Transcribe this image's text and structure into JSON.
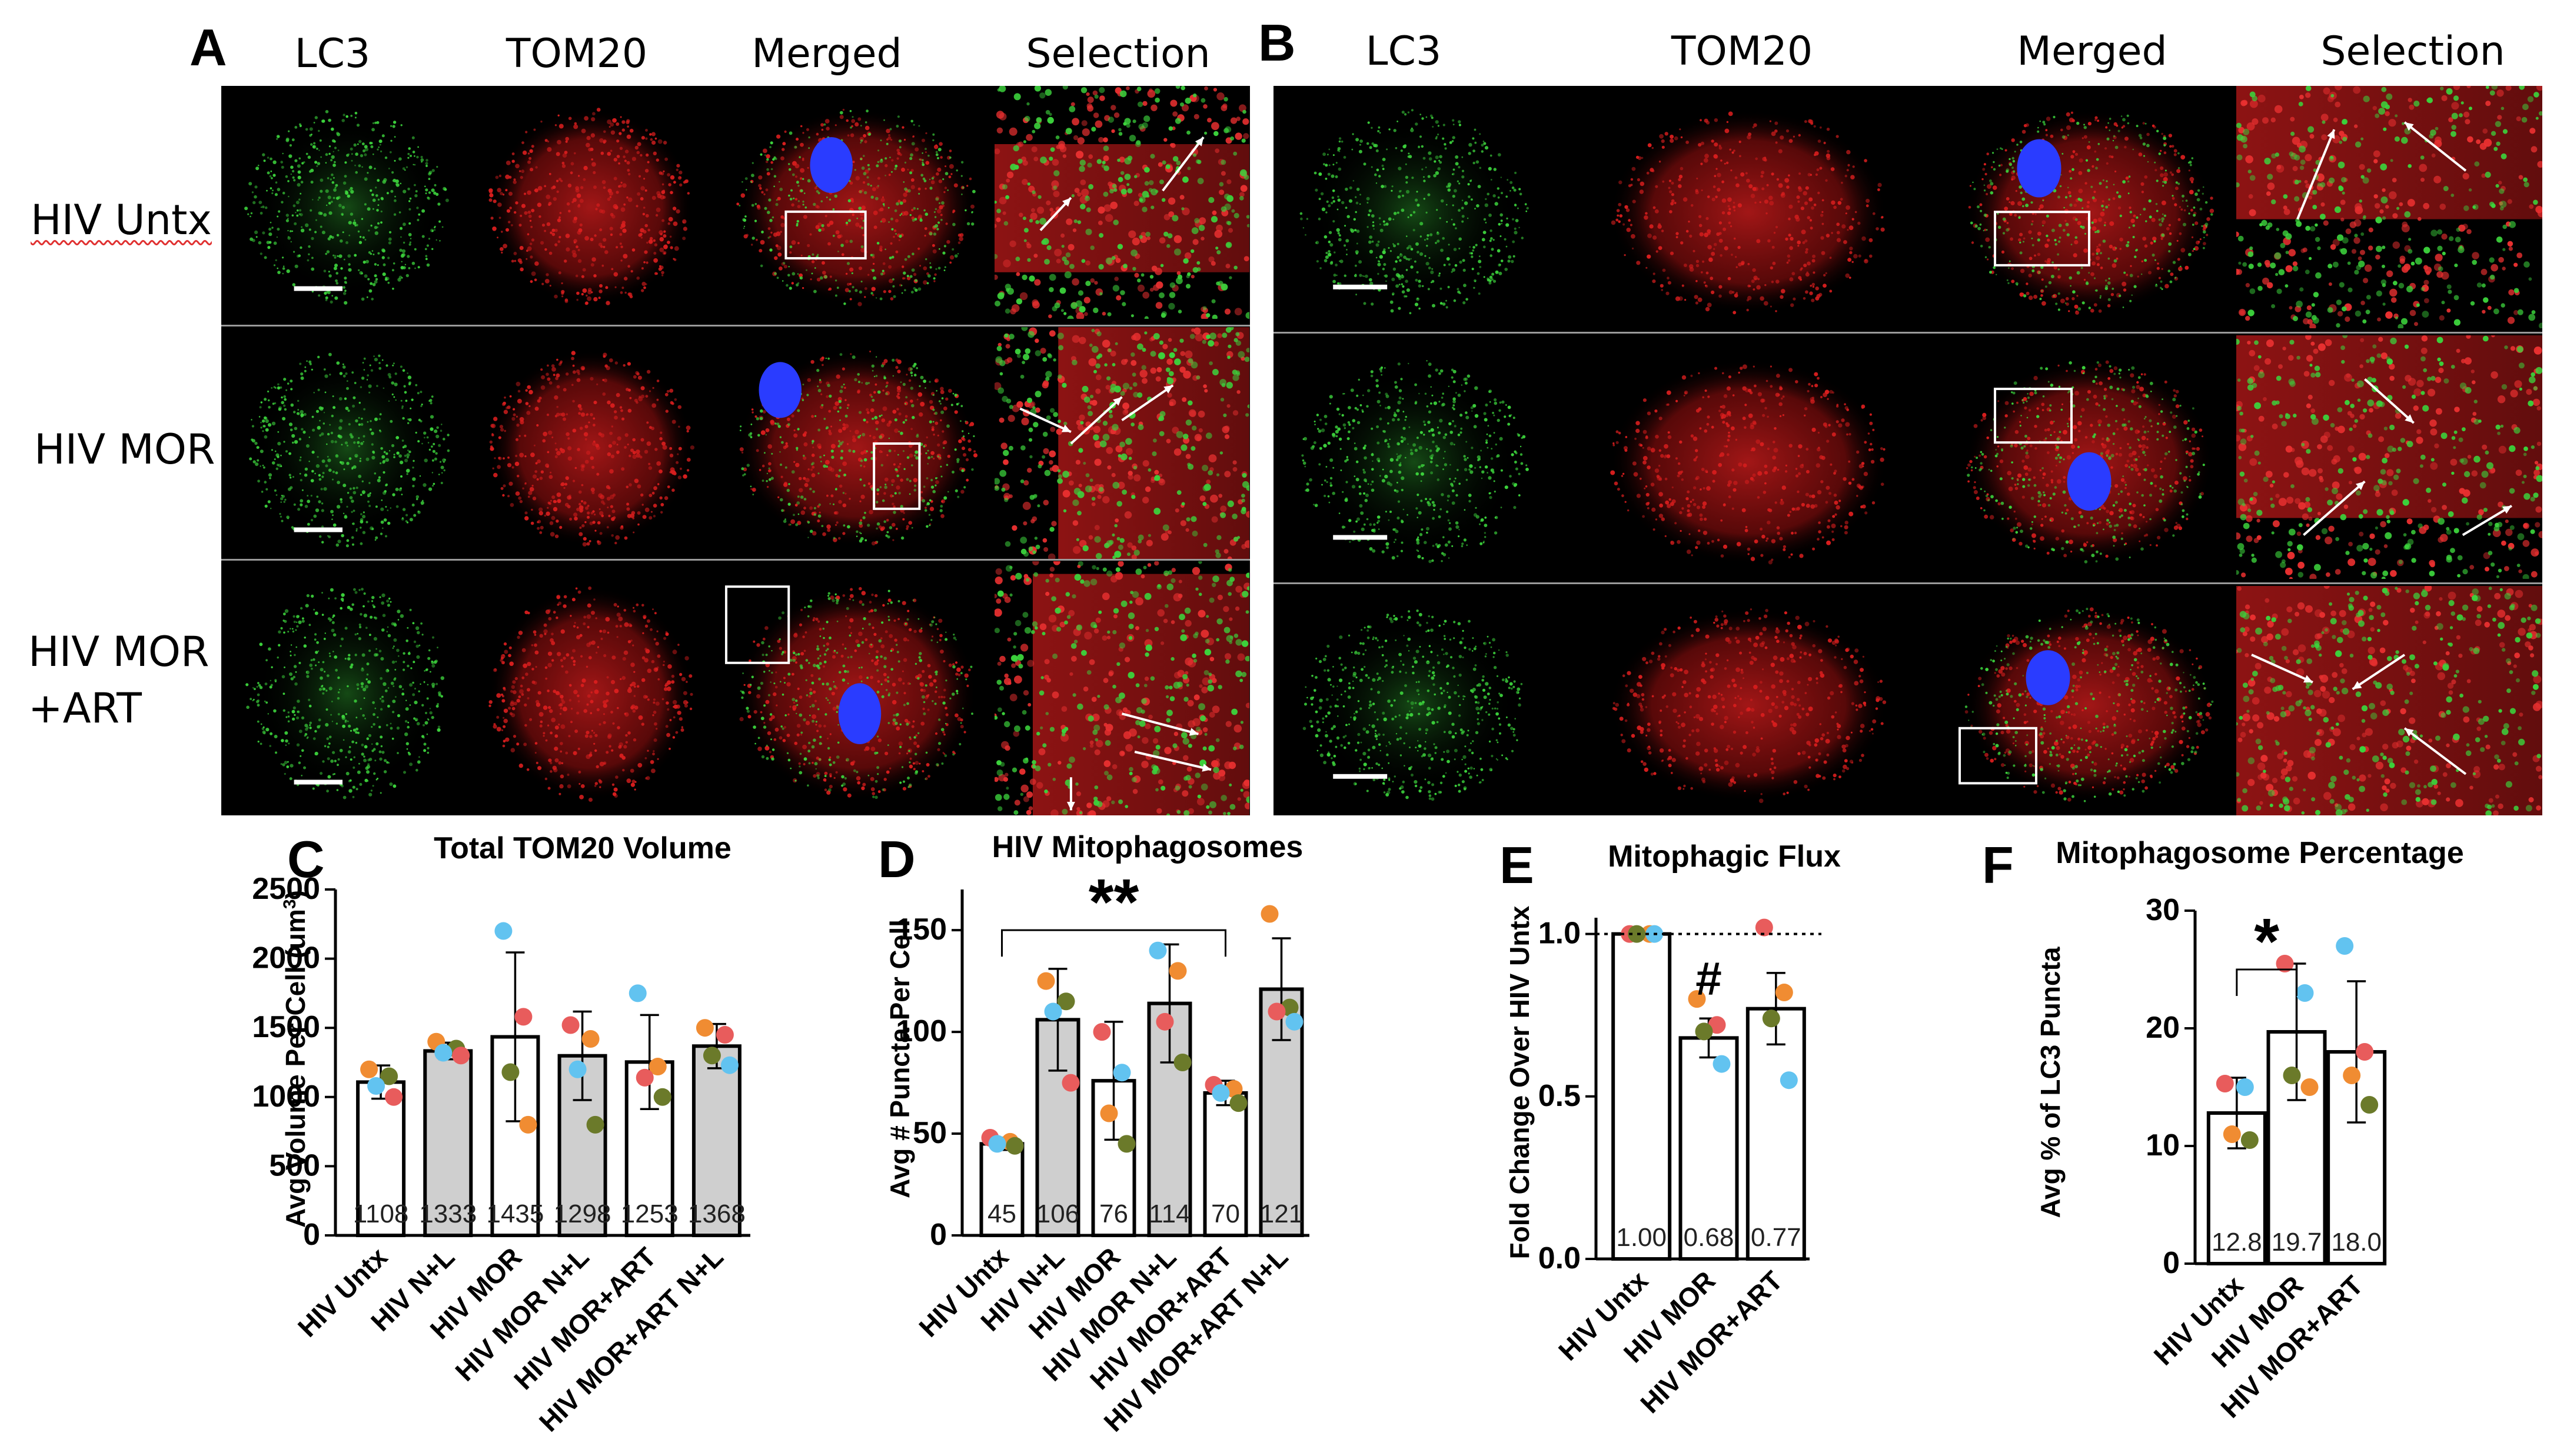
{
  "figure": {
    "panels": [
      {
        "letter": "A",
        "columns": [
          "LC3",
          "TOM20",
          "Merged",
          "Selection"
        ],
        "rows": [
          {
            "label": "HIV Untx",
            "underlined": true
          },
          {
            "label": "HIV MOR"
          },
          {
            "label": "HIV MOR",
            "label2": "+ART"
          }
        ]
      },
      {
        "letter": "B",
        "columns": [
          "LC3",
          "TOM20",
          "Merged",
          "Selection"
        ]
      }
    ],
    "colors": {
      "lc3_green": "#3cd23c",
      "tom20_red": "#d81e1e",
      "nucleus_blue": "#2a3cff",
      "bar_white": "#ffffff",
      "bar_grey": "#cfcfcf",
      "dot_blue": "#62c3f0",
      "dot_orange": "#f08c32",
      "dot_green": "#6b7a2a",
      "dot_red": "#e85c5c"
    }
  },
  "chart_data": [
    {
      "letter": "C",
      "type": "bar",
      "title": "Total TOM20 Volume",
      "ylabel": "Avg Volume Per Cell (um",
      "ylabel_sup": "3",
      "ylabel_close": ")",
      "ylim": [
        0,
        2500
      ],
      "yticks": [
        0,
        500,
        1000,
        1500,
        2000,
        2500
      ],
      "categories": [
        "HIV Untx",
        "HIV N+L",
        "HIV MOR",
        "HIV MOR N+L",
        "HIV MOR+ART",
        "HIV MOR+ART N+L"
      ],
      "values": [
        1108,
        1333,
        1435,
        1298,
        1253,
        1368
      ],
      "value_labels": [
        "1108",
        "1333",
        "1435",
        "1298",
        "1253",
        "1368"
      ],
      "errors": [
        120,
        60,
        610,
        320,
        340,
        160
      ],
      "fills": [
        "white",
        "grey",
        "white",
        "grey",
        "white",
        "grey"
      ],
      "points": [
        [
          {
            "v": 1200,
            "c": "dot_orange"
          },
          {
            "v": 1150,
            "c": "dot_green"
          },
          {
            "v": 1080,
            "c": "dot_blue"
          },
          {
            "v": 1000,
            "c": "dot_red"
          }
        ],
        [
          {
            "v": 1400,
            "c": "dot_orange"
          },
          {
            "v": 1350,
            "c": "dot_green"
          },
          {
            "v": 1320,
            "c": "dot_blue"
          },
          {
            "v": 1300,
            "c": "dot_red"
          }
        ],
        [
          {
            "v": 2200,
            "c": "dot_blue"
          },
          {
            "v": 1580,
            "c": "dot_red"
          },
          {
            "v": 1180,
            "c": "dot_green"
          },
          {
            "v": 800,
            "c": "dot_orange"
          }
        ],
        [
          {
            "v": 1520,
            "c": "dot_red"
          },
          {
            "v": 1420,
            "c": "dot_orange"
          },
          {
            "v": 1200,
            "c": "dot_blue"
          },
          {
            "v": 800,
            "c": "dot_green"
          }
        ],
        [
          {
            "v": 1750,
            "c": "dot_blue"
          },
          {
            "v": 1220,
            "c": "dot_orange"
          },
          {
            "v": 1140,
            "c": "dot_red"
          },
          {
            "v": 1000,
            "c": "dot_green"
          }
        ],
        [
          {
            "v": 1500,
            "c": "dot_orange"
          },
          {
            "v": 1450,
            "c": "dot_red"
          },
          {
            "v": 1300,
            "c": "dot_green"
          },
          {
            "v": 1230,
            "c": "dot_blue"
          }
        ]
      ]
    },
    {
      "letter": "D",
      "type": "bar",
      "title": "HIV Mitophagosomes",
      "ylabel": "Avg # Puncta Per Cell",
      "ylim": [
        0,
        170
      ],
      "yticks": [
        0,
        50,
        100,
        150
      ],
      "categories": [
        "HIV Untx",
        "HIV N+L",
        "HIV MOR",
        "HIV MOR N+L",
        "HIV MOR+ART",
        "HIV MOR+ART N+L"
      ],
      "values": [
        45,
        106,
        76,
        114,
        70,
        121
      ],
      "value_labels": [
        "45",
        "106",
        "76",
        "114",
        "70",
        "121"
      ],
      "errors": [
        3,
        25,
        29,
        29,
        6,
        25
      ],
      "fills": [
        "white",
        "grey",
        "white",
        "grey",
        "white",
        "grey"
      ],
      "points": [
        [
          {
            "v": 48,
            "c": "dot_red"
          },
          {
            "v": 46,
            "c": "dot_orange"
          },
          {
            "v": 45,
            "c": "dot_blue"
          },
          {
            "v": 44,
            "c": "dot_green"
          }
        ],
        [
          {
            "v": 125,
            "c": "dot_orange"
          },
          {
            "v": 115,
            "c": "dot_green"
          },
          {
            "v": 110,
            "c": "dot_blue"
          },
          {
            "v": 75,
            "c": "dot_red"
          }
        ],
        [
          {
            "v": 100,
            "c": "dot_red"
          },
          {
            "v": 80,
            "c": "dot_blue"
          },
          {
            "v": 60,
            "c": "dot_orange"
          },
          {
            "v": 45,
            "c": "dot_green"
          }
        ],
        [
          {
            "v": 140,
            "c": "dot_blue"
          },
          {
            "v": 130,
            "c": "dot_orange"
          },
          {
            "v": 105,
            "c": "dot_red"
          },
          {
            "v": 85,
            "c": "dot_green"
          }
        ],
        [
          {
            "v": 74,
            "c": "dot_red"
          },
          {
            "v": 72,
            "c": "dot_orange"
          },
          {
            "v": 70,
            "c": "dot_blue"
          },
          {
            "v": 65,
            "c": "dot_green"
          }
        ],
        [
          {
            "v": 158,
            "c": "dot_orange"
          },
          {
            "v": 112,
            "c": "dot_green"
          },
          {
            "v": 110,
            "c": "dot_red"
          },
          {
            "v": 105,
            "c": "dot_blue"
          }
        ]
      ],
      "significance": {
        "label": "**",
        "from": 0,
        "to": 4,
        "at": 150
      }
    },
    {
      "letter": "E",
      "type": "bar",
      "title": "Mitophagic Flux",
      "ylabel": "Fold Change Over HIV Untx",
      "ylim": [
        0,
        1.05
      ],
      "yticks": [
        0.0,
        0.5,
        1.0
      ],
      "ytick_labels": [
        "0.0",
        "0.5",
        "1.0"
      ],
      "categories": [
        "HIV Untx",
        "HIV MOR",
        "HIV MOR+ART"
      ],
      "values": [
        1.0,
        0.68,
        0.77
      ],
      "value_labels": [
        "1.00",
        "0.68",
        "0.77"
      ],
      "errors": [
        0,
        0.06,
        0.11
      ],
      "fills": [
        "white",
        "white",
        "white"
      ],
      "points": [
        [
          {
            "v": 1.0,
            "c": "dot_red"
          },
          {
            "v": 1.0,
            "c": "dot_orange"
          },
          {
            "v": 1.0,
            "c": "dot_green"
          },
          {
            "v": 1.0,
            "c": "dot_blue"
          }
        ],
        [
          {
            "v": 0.8,
            "c": "dot_orange"
          },
          {
            "v": 0.72,
            "c": "dot_red"
          },
          {
            "v": 0.7,
            "c": "dot_green"
          },
          {
            "v": 0.6,
            "c": "dot_blue"
          }
        ],
        [
          {
            "v": 1.02,
            "c": "dot_red"
          },
          {
            "v": 0.82,
            "c": "dot_orange"
          },
          {
            "v": 0.74,
            "c": "dot_green"
          },
          {
            "v": 0.55,
            "c": "dot_blue"
          }
        ]
      ],
      "reference_line": 1.0,
      "annotation": {
        "label": "#",
        "bar": 1
      }
    },
    {
      "letter": "F",
      "type": "bar",
      "title": "Mitophagosome Percentage",
      "ylabel": "Avg % of LC3 Puncta",
      "ylim": [
        0,
        30
      ],
      "yticks": [
        0,
        10,
        20,
        30
      ],
      "categories": [
        "HIV Untx",
        "HIV MOR",
        "HIV MOR+ART"
      ],
      "values": [
        12.8,
        19.7,
        18.0
      ],
      "value_labels": [
        "12.8",
        "19.7",
        "18.0"
      ],
      "errors": [
        3.0,
        5.8,
        6.0
      ],
      "fills": [
        "white",
        "white",
        "white"
      ],
      "points": [
        [
          {
            "v": 15.3,
            "c": "dot_red"
          },
          {
            "v": 15.0,
            "c": "dot_blue"
          },
          {
            "v": 11,
            "c": "dot_orange"
          },
          {
            "v": 10.5,
            "c": "dot_green"
          }
        ],
        [
          {
            "v": 25.5,
            "c": "dot_red"
          },
          {
            "v": 23,
            "c": "dot_blue"
          },
          {
            "v": 16,
            "c": "dot_green"
          },
          {
            "v": 15,
            "c": "dot_orange"
          }
        ],
        [
          {
            "v": 27,
            "c": "dot_blue"
          },
          {
            "v": 18,
            "c": "dot_red"
          },
          {
            "v": 16,
            "c": "dot_orange"
          },
          {
            "v": 13.5,
            "c": "dot_green"
          }
        ]
      ],
      "significance": {
        "label": "*",
        "from": 0,
        "to": 1,
        "at": 25
      }
    }
  ]
}
